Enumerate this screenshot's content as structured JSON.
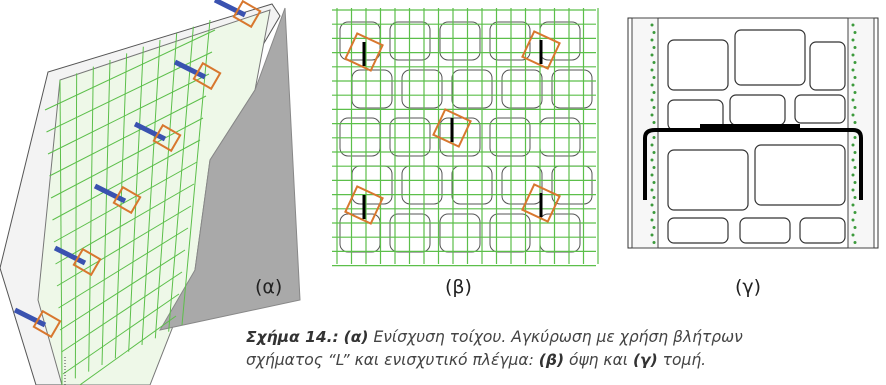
{
  "figure": {
    "panel_labels": [
      "(α)",
      "(β)",
      "(γ)"
    ],
    "caption": {
      "line1": [
        "Σχήμα 14.:",
        "(α)",
        "Ενίσχυση τοίχου. Αγκύρωση με χρήση βλήτρων"
      ],
      "line2": [
        "σχήματος “L” και ενισχυτικό πλέγμα:",
        "(β)",
        "όψη και",
        "(γ)",
        "τομή."
      ]
    }
  }
}
